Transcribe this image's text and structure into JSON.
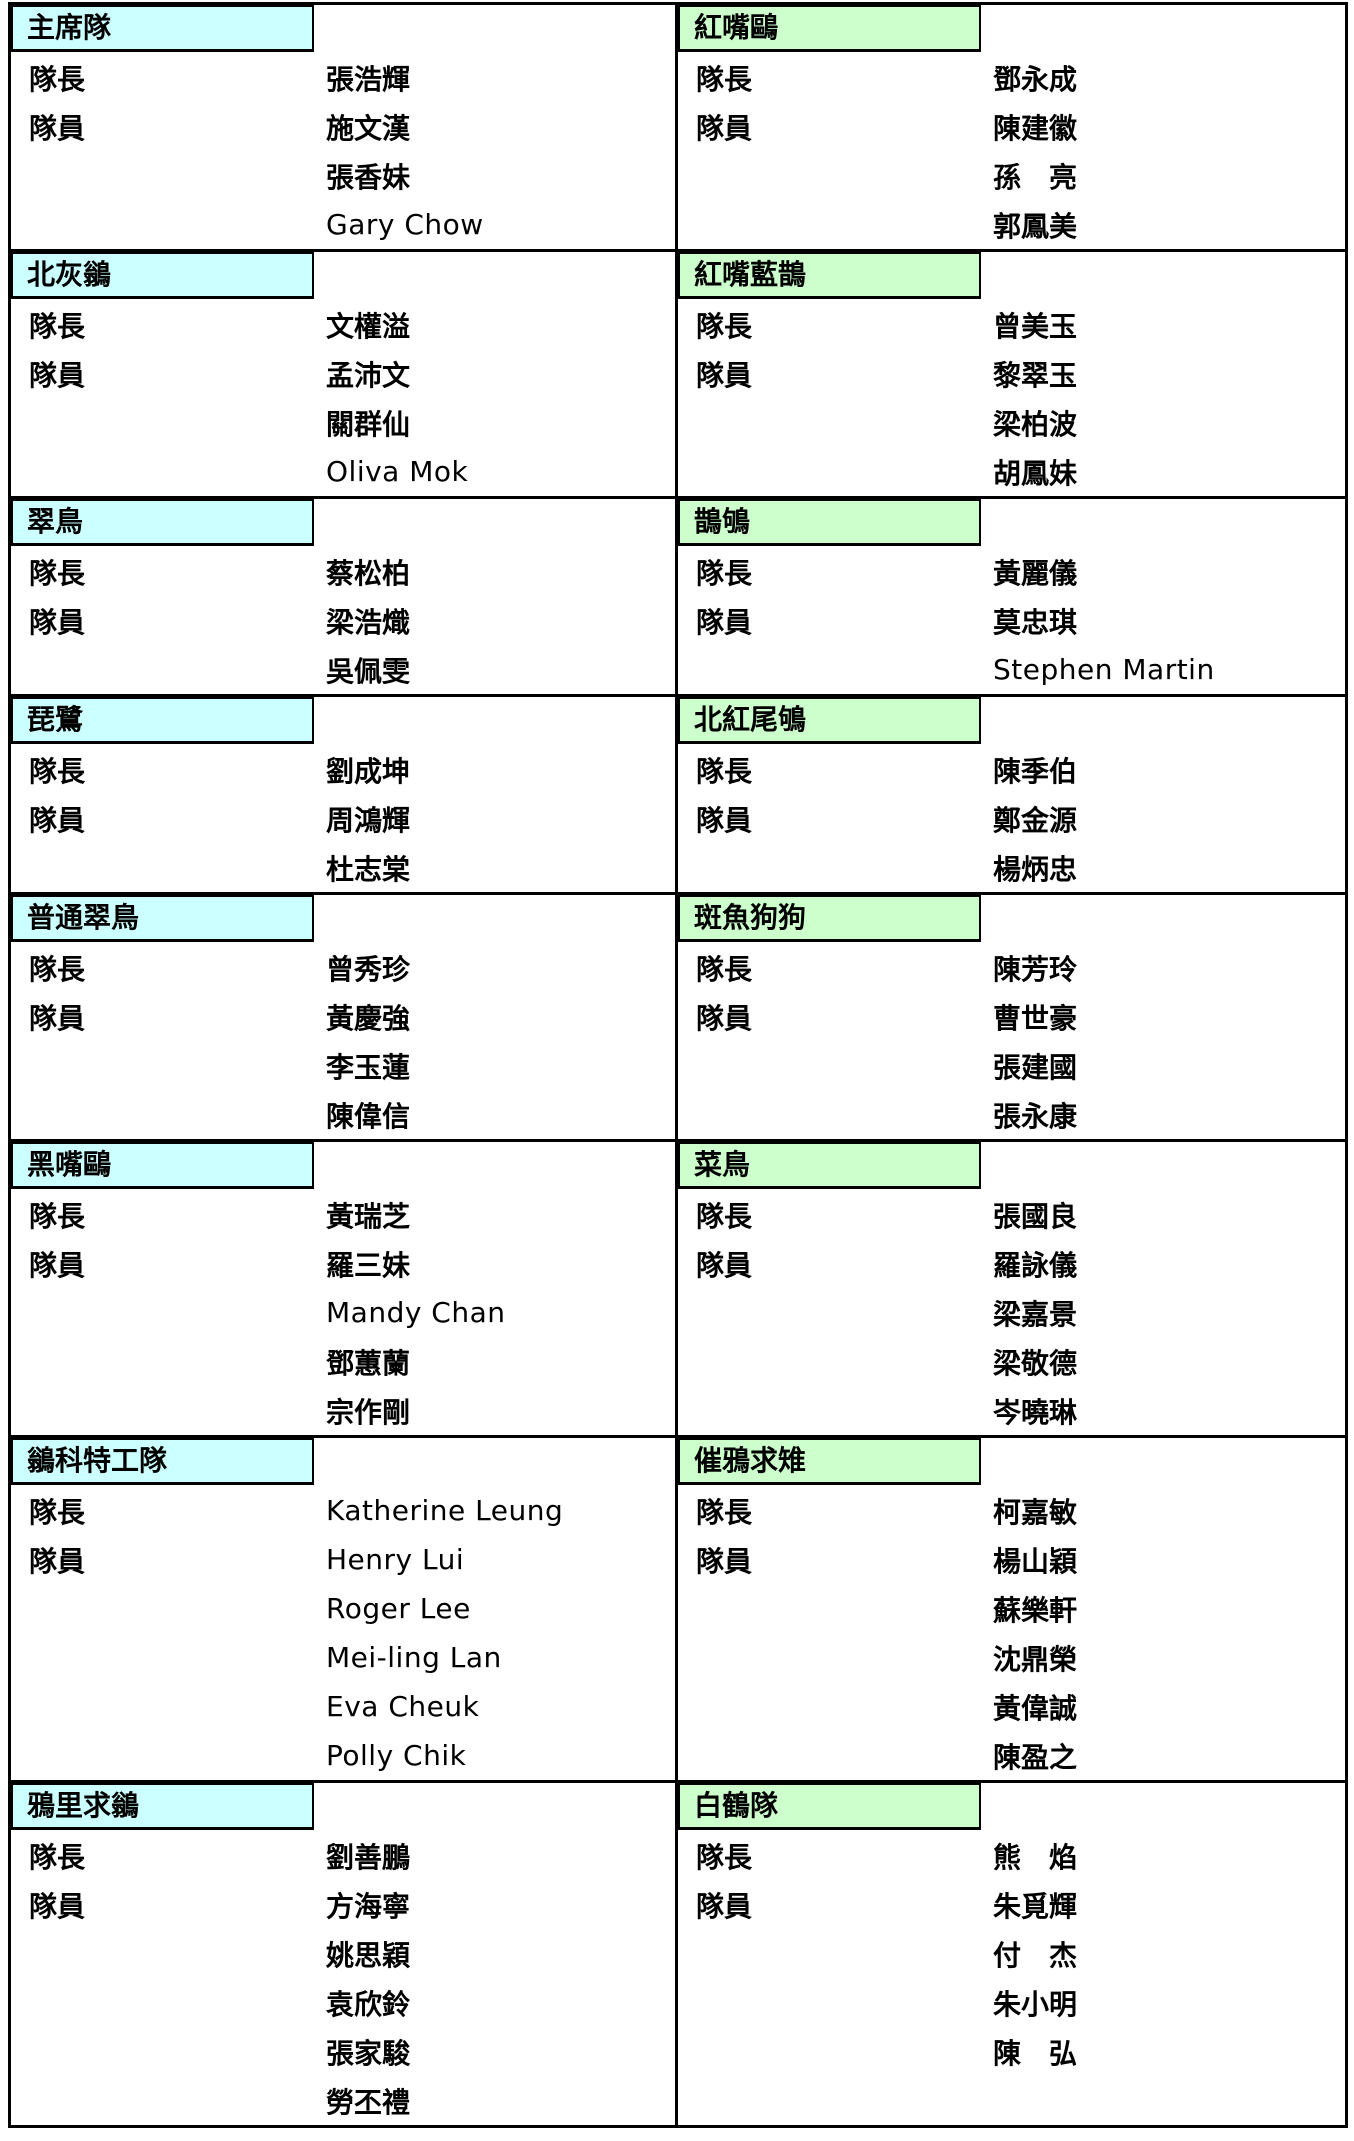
{
  "labels": {
    "captain": "隊長",
    "member": "隊員"
  },
  "colors": {
    "left_header_bg": "#ccffff",
    "right_header_bg": "#ccffcc",
    "border": "#000000",
    "text": "#000000",
    "background": "#ffffff"
  },
  "columns": [
    {
      "side": "left",
      "header_bg": "#ccffff",
      "teams": [
        {
          "name": "主席隊",
          "captain": "張浩輝",
          "members": [
            "施文漢",
            "張香妹",
            "Gary Chow"
          ]
        },
        {
          "name": "北灰鶲",
          "captain": "文權溢",
          "members": [
            "孟沛文",
            "關群仙",
            "Oliva Mok"
          ]
        },
        {
          "name": "翠鳥",
          "captain": "蔡松柏",
          "members": [
            "梁浩熾",
            "吳佩雯"
          ]
        },
        {
          "name": "琵鷺",
          "captain": "劉成坤",
          "members": [
            "周鴻輝",
            "杜志棠"
          ]
        },
        {
          "name": "普通翠鳥",
          "captain": "曾秀珍",
          "members": [
            "黃慶強",
            "李玉蓮",
            "陳偉信"
          ]
        },
        {
          "name": "黑嘴鷗",
          "captain": "黃瑞芝",
          "members": [
            "羅三妹",
            "Mandy Chan",
            "鄧蕙蘭",
            "宗作剛"
          ]
        },
        {
          "name": "鶲科特工隊",
          "captain": "Katherine Leung",
          "members": [
            "Henry Lui",
            "Roger Lee",
            "Mei-ling Lan",
            "Eva Cheuk",
            "Polly Chik"
          ]
        },
        {
          "name": "鴉里求鶲",
          "captain": "劉善鵬",
          "members": [
            "方海寧",
            "姚思穎",
            "袁欣鈴",
            "張家駿",
            "勞丕禮"
          ]
        }
      ]
    },
    {
      "side": "right",
      "header_bg": "#ccffcc",
      "teams": [
        {
          "name": "紅嘴鷗",
          "captain": "鄧永成",
          "members": [
            "陳建徽",
            "孫　亮",
            "郭鳳美"
          ]
        },
        {
          "name": "紅嘴藍鵲",
          "captain": "曾美玉",
          "members": [
            "黎翠玉",
            "梁柏波",
            "胡鳳妹"
          ]
        },
        {
          "name": "鵲鴝",
          "captain": "黃麗儀",
          "members": [
            "莫忠琪",
            "Stephen Martin"
          ]
        },
        {
          "name": "北紅尾鴝",
          "captain": "陳季伯",
          "members": [
            "鄭金源",
            "楊炳忠"
          ]
        },
        {
          "name": "斑魚狗狗",
          "captain": "陳芳玲",
          "members": [
            "曹世豪",
            "張建國",
            "張永康"
          ]
        },
        {
          "name": "菜鳥",
          "captain": "張國良",
          "members": [
            "羅詠儀",
            "梁嘉景",
            "梁敬德",
            "岑曉琳"
          ]
        },
        {
          "name": "催鴉求雉",
          "captain": "柯嘉敏",
          "members": [
            "楊山穎",
            "蘇樂軒",
            "沈鼎榮",
            "黃偉誠",
            "陳盈之"
          ]
        },
        {
          "name": "白鶴隊",
          "captain": "熊　焰",
          "members": [
            "朱覓輝",
            "付　杰",
            "朱小明",
            "陳　弘"
          ]
        }
      ]
    }
  ]
}
